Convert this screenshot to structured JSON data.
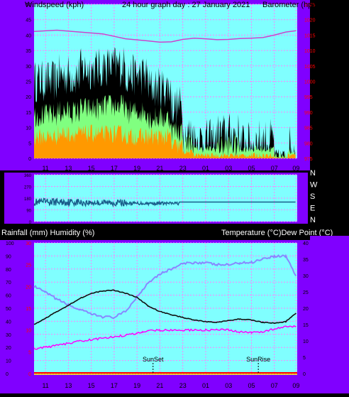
{
  "colors": {
    "frame": "#8000ff",
    "plot_bg": "#80ffff",
    "grid": "#ff80ff",
    "divider": "#b000ff",
    "black_line": "#000000",
    "gust": "#000000",
    "wind_mid": "#80ff80",
    "wind_low": "#ff9900",
    "barometer": "#cc44cc",
    "wind_dir": "#1a5c8a",
    "temperature": "#8888ff",
    "dew_point": "#111111",
    "humidity": "#ff00ff",
    "rain": "#ff0000",
    "left_tick": "#000000",
    "right_tick_red": "#ff0000"
  },
  "chart_data": [
    {
      "type": "line",
      "name": "windspeed-barometer",
      "title": "24 hour graph day : 27 January 2021",
      "left_axis_label": "Windspeed (kph)",
      "right_axis_label": "Barometer (hpa)",
      "left_ticks": [
        "50",
        "45",
        "40",
        "35",
        "30",
        "25",
        "20",
        "15",
        "10",
        "5",
        "0"
      ],
      "left_range": [
        0,
        50
      ],
      "right_ticks": [
        "1025",
        "1020",
        "1015",
        "1010",
        "1005",
        "1000",
        "995",
        "990",
        "985",
        "980",
        "975"
      ],
      "right_range": [
        975,
        1025
      ],
      "x_labels": [
        "11",
        "13",
        "15",
        "17",
        "19",
        "21",
        "23",
        "01",
        "03",
        "05",
        "07",
        "09"
      ],
      "barometer": [
        [
          0,
          1016.2
        ],
        [
          2,
          1016.6
        ],
        [
          4,
          1016.0
        ],
        [
          6,
          1015.4
        ],
        [
          8,
          1013.8
        ],
        [
          10,
          1013.1
        ],
        [
          11,
          1012.7
        ],
        [
          12,
          1012.8
        ],
        [
          13,
          1013.6
        ],
        [
          14,
          1014.0
        ],
        [
          15,
          1013.8
        ],
        [
          16,
          1013.5
        ],
        [
          17,
          1013.6
        ],
        [
          18,
          1013.9
        ],
        [
          19,
          1014.0
        ],
        [
          20,
          1014.2
        ],
        [
          21,
          1015.0
        ],
        [
          22,
          1016.0
        ],
        [
          22.9,
          1016.4
        ]
      ],
      "wind_segments": [
        {
          "start": 0,
          "end": 2,
          "gust": 25,
          "avg": 14,
          "low": 7
        },
        {
          "start": 2,
          "end": 4,
          "gust": 27,
          "avg": 15,
          "low": 8
        },
        {
          "start": 4,
          "end": 6,
          "gust": 29,
          "avg": 16,
          "low": 8
        },
        {
          "start": 6,
          "end": 8,
          "gust": 30,
          "avg": 17,
          "low": 8
        },
        {
          "start": 8,
          "end": 10,
          "gust": 27,
          "avg": 15,
          "low": 7
        },
        {
          "start": 10,
          "end": 12,
          "gust": 23,
          "avg": 13,
          "low": 7
        },
        {
          "start": 12,
          "end": 13,
          "gust": 17,
          "avg": 9,
          "low": 4
        },
        {
          "start": 13,
          "end": 14,
          "gust": 8,
          "avg": 5,
          "low": 2
        },
        {
          "start": 14,
          "end": 16,
          "gust": 6,
          "avg": 3,
          "low": 1
        },
        {
          "start": 16,
          "end": 18,
          "gust": 8,
          "avg": 4,
          "low": 1
        },
        {
          "start": 18,
          "end": 19.5,
          "gust": 5,
          "avg": 3,
          "low": 1
        },
        {
          "start": 19.5,
          "end": 21,
          "gust": 6,
          "avg": 3,
          "low": 1
        },
        {
          "start": 21,
          "end": 22.2,
          "gust": 1,
          "avg": 1,
          "low": 0
        },
        {
          "start": 22.2,
          "end": 22.9,
          "gust": 4,
          "avg": 2,
          "low": 1
        }
      ]
    },
    {
      "type": "line",
      "name": "wind-direction",
      "right_labels": [
        "N",
        "W",
        "S",
        "E",
        "N"
      ],
      "left_ticks": [
        "360",
        "270",
        "180",
        "90",
        "0"
      ],
      "range": [
        0,
        360
      ],
      "direction_segments": [
        {
          "start": 0,
          "end": 4,
          "mean": 150,
          "noise": 28
        },
        {
          "start": 4,
          "end": 8,
          "mean": 145,
          "noise": 24
        },
        {
          "start": 8,
          "end": 12.7,
          "mean": 140,
          "noise": 12
        },
        {
          "start": 12.7,
          "end": 22.9,
          "mean": 150,
          "noise": 0
        }
      ]
    },
    {
      "type": "line",
      "name": "rain-humidity-temperature",
      "left_axis_label": "Rainfall (mm)  Humidity (%)",
      "right_axis_label": "Temperature (°C)Dew Point (°C)",
      "humidity_ticks": [
        "100",
        "90",
        "80",
        "70",
        "60",
        "50",
        "40",
        "30",
        "20",
        "10",
        "0"
      ],
      "rain_ticks": [
        "30",
        "25",
        "20",
        "15",
        "10",
        "5",
        "0"
      ],
      "right_ticks": [
        "40",
        "35",
        "30",
        "25",
        "20",
        "15",
        "10",
        "5",
        "0"
      ],
      "right_range": [
        0,
        40
      ],
      "x_labels": [
        "11",
        "13",
        "15",
        "17",
        "19",
        "21",
        "23",
        "01",
        "03",
        "05",
        "07",
        "09"
      ],
      "sunset_label": "SunSet",
      "sunset_hour": 10.4,
      "sunrise_label": "SunRise",
      "sunrise_hour": 19.6,
      "temperature": [
        [
          0,
          26.7
        ],
        [
          1,
          24.8
        ],
        [
          2,
          22.8
        ],
        [
          3,
          21.0
        ],
        [
          4,
          19.5
        ],
        [
          5,
          18.2
        ],
        [
          6,
          17.4
        ],
        [
          7,
          17.2
        ],
        [
          8,
          19.0
        ],
        [
          9,
          23.5
        ],
        [
          10,
          28.0
        ],
        [
          11,
          30.5
        ],
        [
          12,
          32.0
        ],
        [
          13,
          33.6
        ],
        [
          14,
          34.0
        ],
        [
          15,
          33.9
        ],
        [
          16,
          33.3
        ],
        [
          17,
          33.3
        ],
        [
          18,
          33.9
        ],
        [
          19,
          34.0
        ],
        [
          20,
          35.2
        ],
        [
          21,
          35.9
        ],
        [
          22,
          36.0
        ],
        [
          22.9,
          29.9
        ]
      ],
      "dew_point": [
        [
          0,
          15.0
        ],
        [
          1,
          16.9
        ],
        [
          2,
          19.0
        ],
        [
          3,
          20.9
        ],
        [
          4,
          23.0
        ],
        [
          5,
          24.5
        ],
        [
          6,
          25.3
        ],
        [
          7,
          25.5
        ],
        [
          8,
          24.6
        ],
        [
          9,
          23.3
        ],
        [
          10,
          20.6
        ],
        [
          11,
          19.0
        ],
        [
          12,
          18.0
        ],
        [
          13,
          17.2
        ],
        [
          14,
          16.4
        ],
        [
          15,
          15.9
        ],
        [
          16,
          15.7
        ],
        [
          17,
          16.2
        ],
        [
          18,
          16.7
        ],
        [
          19,
          16.4
        ],
        [
          20,
          15.7
        ],
        [
          21,
          15.4
        ],
        [
          22,
          15.9
        ],
        [
          22.9,
          18.5
        ]
      ],
      "humidity": [
        [
          0,
          7.5
        ],
        [
          2,
          8.6
        ],
        [
          4,
          9.9
        ],
        [
          6,
          10.8
        ],
        [
          8,
          11.7
        ],
        [
          9,
          12.3
        ],
        [
          9.5,
          12.8
        ],
        [
          10,
          13.2
        ],
        [
          11,
          13.3
        ],
        [
          13,
          13.3
        ],
        [
          15,
          13.3
        ],
        [
          16,
          13.4
        ],
        [
          17,
          13.3
        ],
        [
          18,
          12.7
        ],
        [
          19,
          12.5
        ],
        [
          20,
          12.9
        ],
        [
          21,
          13.6
        ],
        [
          22,
          14.3
        ],
        [
          22.9,
          14.5
        ]
      ]
    }
  ]
}
